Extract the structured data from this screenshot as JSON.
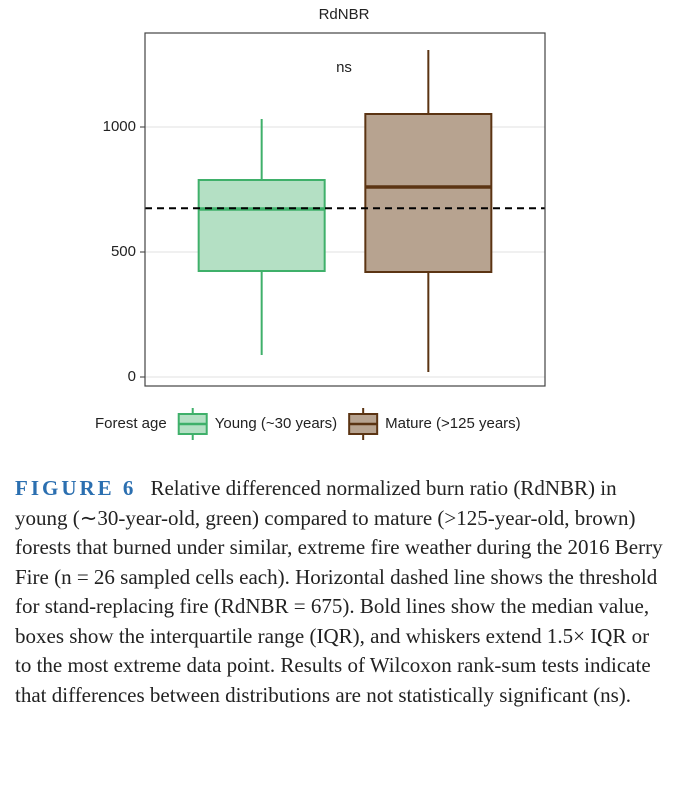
{
  "chart_data": {
    "type": "box",
    "title": "RdNBR",
    "annotation": "ns",
    "ylim": [
      -36,
      1376
    ],
    "yticks": [
      0,
      500,
      1000
    ],
    "grid": true,
    "reference_line": 675,
    "legend_title": "Forest age",
    "series": [
      {
        "name": "Young (~30 years)",
        "color": "#3fb06a",
        "fill": "#b4e0c4",
        "min": 88,
        "q1": 424,
        "median": 672,
        "q3": 788,
        "max": 1032
      },
      {
        "name": "Mature (>125 years)",
        "color": "#5b3413",
        "fill": "#b7a390",
        "min": 20,
        "q1": 420,
        "median": 760,
        "q3": 1052,
        "max": 1308
      }
    ]
  },
  "caption": {
    "label": "FIGURE 6",
    "text": "Relative differenced normalized burn ratio (RdNBR) in young (∼30-year-old, green) compared to mature (>125-year-old, brown) forests that burned under similar, extreme fire weather during the 2016 Berry Fire (n = 26 sampled cells each). Horizontal dashed line shows the threshold for stand-replacing fire (RdNBR = 675). Bold lines show the median value, boxes show the interquartile range (IQR), and whiskers extend 1.5× IQR or to the most extreme data point. Results of Wilcoxon rank-sum tests indicate that differences between distributions are not statistically significant (ns)."
  }
}
